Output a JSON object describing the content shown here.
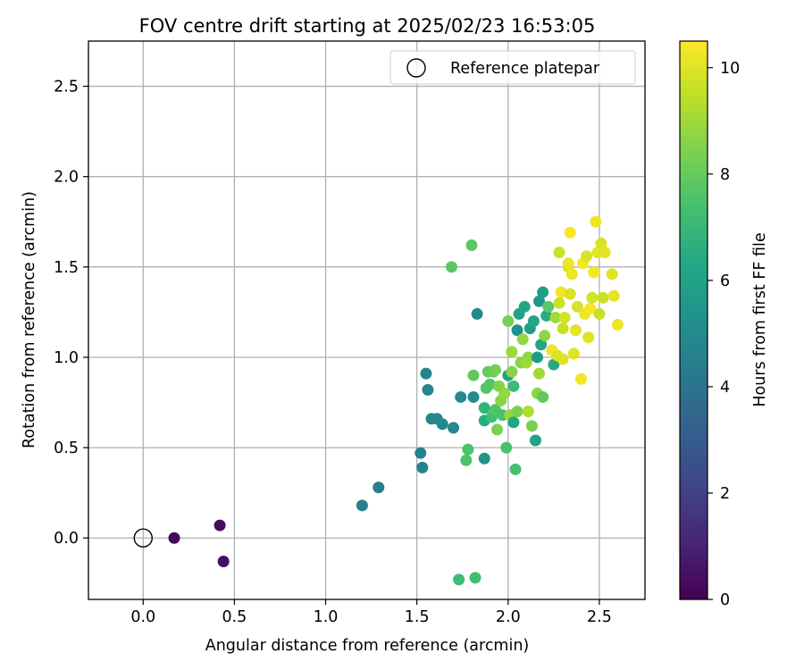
{
  "chart_data": {
    "type": "scatter",
    "title": "FOV centre drift starting at 2025/02/23 16:53:05",
    "xlabel": "Angular distance from reference (arcmin)",
    "ylabel": "Rotation from reference (arcmin)",
    "xlim": [
      -0.3,
      2.75
    ],
    "ylim": [
      -0.34,
      2.75
    ],
    "xticks": [
      0.0,
      0.5,
      1.0,
      1.5,
      2.0,
      2.5
    ],
    "yticks": [
      0.0,
      0.5,
      1.0,
      1.5,
      2.0,
      2.5
    ],
    "xtick_labels": [
      "0.0",
      "0.5",
      "1.0",
      "1.5",
      "2.0",
      "2.5"
    ],
    "ytick_labels": [
      "0.0",
      "0.5",
      "1.0",
      "1.5",
      "2.0",
      "2.5"
    ],
    "grid": true,
    "legend": {
      "placement": "top-right",
      "entries": [
        "Reference platepar"
      ]
    },
    "reference": {
      "x": 0.0,
      "y": 0.0,
      "label": "Reference platepar"
    },
    "colorbar": {
      "label": "Hours from first FF file",
      "range": [
        0,
        10.5
      ],
      "ticks": [
        0,
        2,
        4,
        6,
        8,
        10
      ],
      "tick_labels": [
        "0",
        "2",
        "4",
        "6",
        "8",
        "10"
      ],
      "colormap": "viridis"
    },
    "series": [
      {
        "points": [
          [
            0.17,
            0.0,
            0.2
          ],
          [
            0.42,
            0.07,
            0.3
          ],
          [
            0.44,
            -0.13,
            0.4
          ],
          [
            1.2,
            0.18,
            4.5
          ],
          [
            1.29,
            0.28,
            4.5
          ],
          [
            1.52,
            0.47,
            4.6
          ],
          [
            1.53,
            0.39,
            4.6
          ],
          [
            1.55,
            0.91,
            4.7
          ],
          [
            1.56,
            0.82,
            4.7
          ],
          [
            1.58,
            0.66,
            4.8
          ],
          [
            1.61,
            0.66,
            4.8
          ],
          [
            1.64,
            0.63,
            4.9
          ],
          [
            1.7,
            0.61,
            4.9
          ],
          [
            1.74,
            0.78,
            5.0
          ],
          [
            1.81,
            0.78,
            5.0
          ],
          [
            1.83,
            1.24,
            4.9
          ],
          [
            1.87,
            0.44,
            5.3
          ],
          [
            1.69,
            1.5,
            7.8
          ],
          [
            1.8,
            1.62,
            7.8
          ],
          [
            1.78,
            0.49,
            7.5
          ],
          [
            1.77,
            0.43,
            7.5
          ],
          [
            1.73,
            -0.23,
            7.2
          ],
          [
            1.82,
            -0.22,
            7.3
          ],
          [
            1.81,
            0.9,
            7.9
          ],
          [
            1.87,
            0.72,
            6.8
          ],
          [
            1.87,
            0.65,
            6.5
          ],
          [
            1.88,
            0.83,
            7.6
          ],
          [
            1.89,
            0.92,
            8.0
          ],
          [
            1.9,
            0.85,
            7.7
          ],
          [
            1.91,
            0.67,
            7.3
          ],
          [
            1.92,
            0.92,
            8.1
          ],
          [
            1.93,
            0.93,
            8.3
          ],
          [
            1.93,
            0.71,
            7.6
          ],
          [
            1.94,
            0.6,
            8.4
          ],
          [
            1.95,
            0.84,
            8.5
          ],
          [
            1.96,
            0.76,
            8.6
          ],
          [
            1.97,
            0.68,
            7.4
          ],
          [
            1.98,
            0.8,
            8.8
          ],
          [
            1.99,
            0.5,
            7.4
          ],
          [
            2.0,
            1.2,
            8.3
          ],
          [
            2.0,
            0.9,
            6.0
          ],
          [
            2.01,
            0.68,
            8.9
          ],
          [
            2.02,
            1.03,
            8.9
          ],
          [
            2.02,
            0.92,
            8.6
          ],
          [
            2.03,
            0.64,
            6.2
          ],
          [
            2.03,
            0.84,
            7.1
          ],
          [
            2.04,
            0.38,
            7.4
          ],
          [
            2.05,
            0.7,
            8.4
          ],
          [
            2.05,
            1.15,
            5.2
          ],
          [
            2.06,
            1.24,
            6.0
          ],
          [
            2.07,
            0.97,
            8.6
          ],
          [
            2.08,
            1.1,
            8.8
          ],
          [
            2.09,
            1.28,
            6.2
          ],
          [
            2.1,
            0.97,
            9.0
          ],
          [
            2.11,
            1.0,
            8.8
          ],
          [
            2.11,
            0.7,
            9.2
          ],
          [
            2.12,
            1.16,
            5.8
          ],
          [
            2.13,
            0.62,
            8.4
          ],
          [
            2.14,
            1.2,
            6.2
          ],
          [
            2.15,
            0.54,
            6.0
          ],
          [
            2.16,
            1.0,
            5.7
          ],
          [
            2.16,
            0.8,
            8.7
          ],
          [
            2.17,
            1.31,
            5.5
          ],
          [
            2.17,
            0.91,
            9.0
          ],
          [
            2.18,
            1.07,
            6.2
          ],
          [
            2.19,
            1.36,
            5.9
          ],
          [
            2.19,
            0.78,
            7.9
          ],
          [
            2.2,
            1.12,
            8.7
          ],
          [
            2.21,
            1.23,
            6.5
          ],
          [
            2.22,
            1.28,
            7.8
          ],
          [
            2.24,
            1.04,
            10.2
          ],
          [
            2.25,
            0.96,
            6.4
          ],
          [
            2.26,
            1.22,
            9.0
          ],
          [
            2.27,
            1.01,
            10.0
          ],
          [
            2.28,
            1.3,
            9.7
          ],
          [
            2.28,
            1.58,
            9.7
          ],
          [
            2.29,
            1.36,
            10.3
          ],
          [
            2.3,
            1.16,
            9.6
          ],
          [
            2.3,
            0.99,
            10.0
          ],
          [
            2.31,
            1.22,
            9.8
          ],
          [
            2.33,
            1.5,
            9.9
          ],
          [
            2.33,
            1.52,
            10.2
          ],
          [
            2.34,
            1.35,
            9.9
          ],
          [
            2.34,
            1.69,
            10.4
          ],
          [
            2.35,
            1.46,
            10.2
          ],
          [
            2.36,
            1.02,
            10.0
          ],
          [
            2.37,
            1.15,
            10.1
          ],
          [
            2.38,
            1.28,
            9.9
          ],
          [
            2.4,
            0.88,
            10.3
          ],
          [
            2.41,
            1.52,
            10.4
          ],
          [
            2.42,
            1.24,
            10.2
          ],
          [
            2.43,
            1.56,
            9.9
          ],
          [
            2.44,
            1.11,
            10.0
          ],
          [
            2.45,
            1.27,
            10.4
          ],
          [
            2.46,
            1.33,
            9.8
          ],
          [
            2.47,
            1.47,
            10.4
          ],
          [
            2.48,
            1.75,
            10.3
          ],
          [
            2.49,
            1.58,
            10.1
          ],
          [
            2.5,
            1.24,
            9.6
          ],
          [
            2.51,
            1.63,
            9.9
          ],
          [
            2.52,
            1.33,
            9.7
          ],
          [
            2.53,
            1.58,
            10.1
          ],
          [
            2.57,
            1.46,
            10.0
          ],
          [
            2.58,
            1.34,
            10.1
          ],
          [
            2.6,
            1.18,
            10.2
          ]
        ]
      }
    ]
  }
}
